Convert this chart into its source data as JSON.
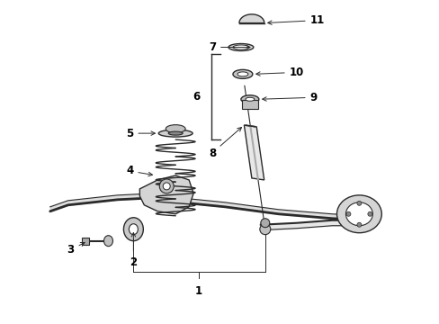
{
  "bg_color": "#ffffff",
  "lc": "#2a2a2a",
  "fig_width": 4.89,
  "fig_height": 3.6,
  "dpi": 100,
  "label_fs": 8.5,
  "label_fw": "bold"
}
